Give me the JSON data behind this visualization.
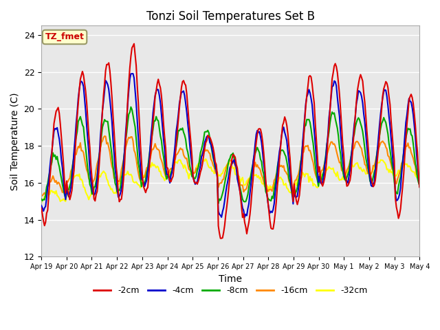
{
  "title": "Tonzi Soil Temperatures Set B",
  "xlabel": "Time",
  "ylabel": "Soil Temperature (C)",
  "ylim": [
    12,
    24.5
  ],
  "yticks": [
    12,
    14,
    16,
    18,
    20,
    22,
    24
  ],
  "annotation": "TZ_fmet",
  "annotation_color": "#cc0000",
  "annotation_bg": "#ffffcc",
  "annotation_border": "#999966",
  "plot_bg": "#e8e8e8",
  "series_colors": [
    "#dd0000",
    "#0000cc",
    "#00aa00",
    "#ff8800",
    "#ffff00"
  ],
  "series_labels": [
    "-2cm",
    "-4cm",
    "-8cm",
    "-16cm",
    "-32cm"
  ],
  "x_tick_labels": [
    "Apr 19",
    "Apr 20",
    "Apr 21",
    "Apr 22",
    "Apr 23",
    "Apr 24",
    "Apr 25",
    "Apr 26",
    "Apr 27",
    "Apr 28",
    "Apr 29",
    "Apr 30",
    "May 1",
    "May 2",
    "May 3",
    "May 4"
  ],
  "grid_color": "#ffffff",
  "line_width": 1.5
}
